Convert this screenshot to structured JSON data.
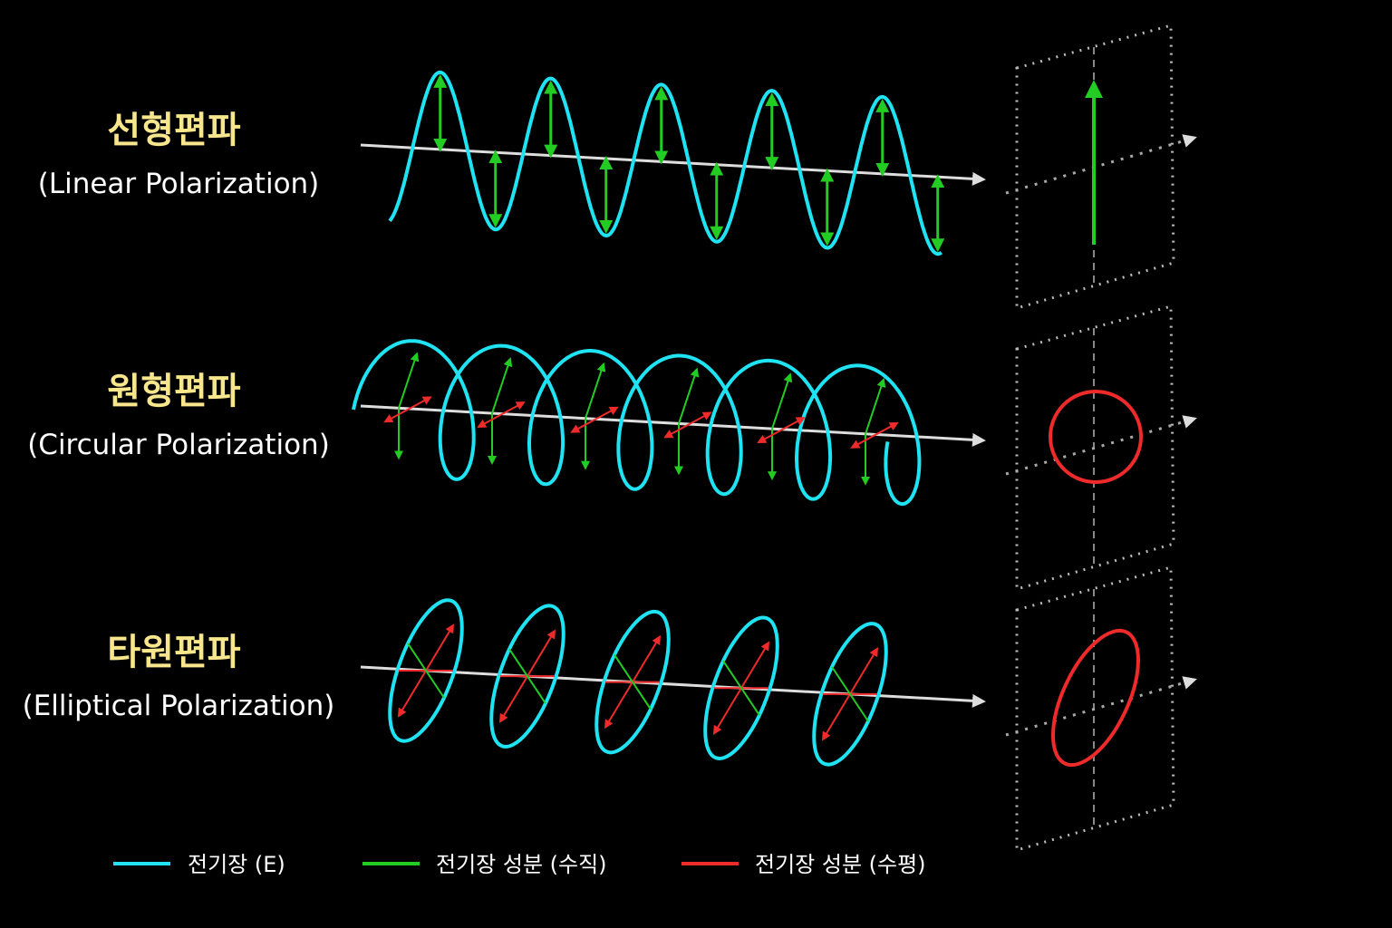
{
  "rows": [
    {
      "title": "선형편파",
      "subtitle": "(Linear Polarization)"
    },
    {
      "title": "원형편파",
      "subtitle": "(Circular Polarization)"
    },
    {
      "title": "타원편파",
      "subtitle": "(Elliptical Polarization)"
    }
  ],
  "legend": {
    "items": [
      {
        "label": "전기장 (E)",
        "color": "#1fe3f2"
      },
      {
        "label": "전기장 성분 (수직)",
        "color": "#22cc22"
      },
      {
        "label": "전기장 성분 (수평)",
        "color": "#ee2a2a"
      }
    ]
  }
}
